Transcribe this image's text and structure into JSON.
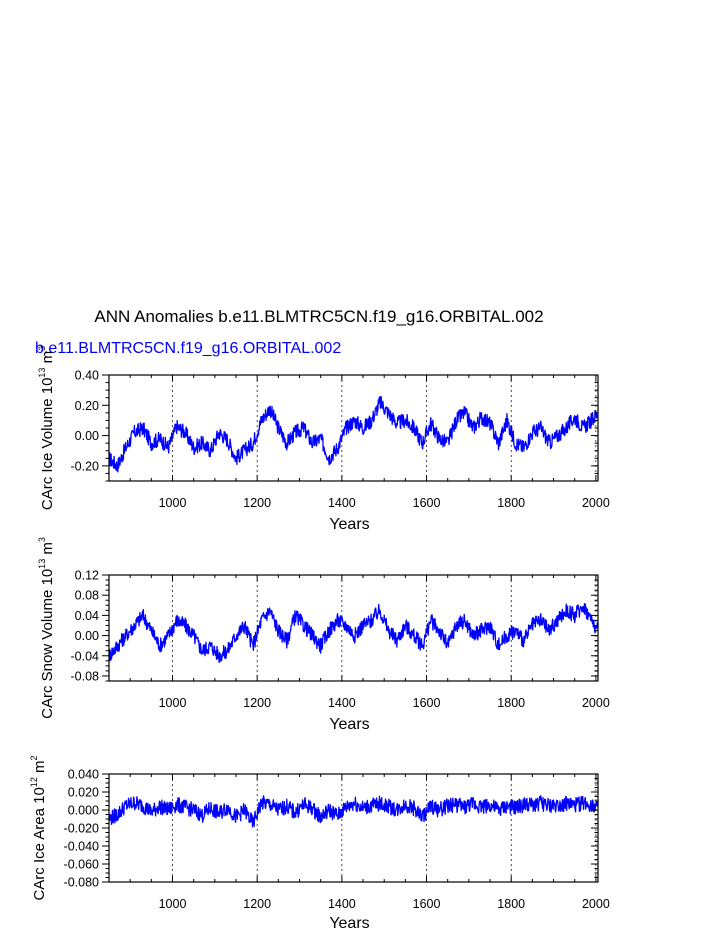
{
  "title": "ANN Anomalies b.e11.BLMTRC5CN.f19_g16.ORBITAL.002",
  "legend_label": "b.e11.BLMTRC5CN.f19_g16.ORBITAL.002",
  "colors": {
    "series": "#0000ff",
    "axes": "#000000",
    "grid": "#000000"
  },
  "chart_data": [
    {
      "type": "line",
      "panel": "ice-volume",
      "ylabel": "CArc Ice Volume 10^13 m^3",
      "ylabel_main": "CArc Ice Volume 10",
      "ylabel_exp": "13",
      "ylabel_unit": " m",
      "ylabel_unit_exp": "3",
      "xlabel": "Years",
      "xlim": [
        850,
        2005
      ],
      "ylim": [
        -0.3,
        0.4
      ],
      "xticks": [
        1000,
        1200,
        1400,
        1600,
        1800,
        2000
      ],
      "xtick_labels": [
        "1000",
        "1200",
        "1400",
        "1600",
        "1800",
        "2000"
      ],
      "yticks": [
        -0.2,
        0.0,
        0.2,
        0.4
      ],
      "ytick_labels": [
        "-0.20",
        "0.00",
        "0.20",
        "0.40"
      ],
      "grid": "x-dashed",
      "series": [
        {
          "name": "b.e11.BLMTRC5CN.f19_g16.ORBITAL.002",
          "x": [
            850,
            870,
            890,
            910,
            930,
            950,
            970,
            990,
            1010,
            1030,
            1050,
            1070,
            1090,
            1110,
            1130,
            1150,
            1170,
            1190,
            1210,
            1230,
            1250,
            1270,
            1290,
            1310,
            1330,
            1350,
            1370,
            1390,
            1410,
            1430,
            1450,
            1470,
            1490,
            1510,
            1530,
            1550,
            1570,
            1590,
            1610,
            1630,
            1650,
            1670,
            1690,
            1710,
            1730,
            1750,
            1770,
            1790,
            1810,
            1830,
            1850,
            1870,
            1890,
            1910,
            1930,
            1950,
            1970,
            1990,
            2005
          ],
          "values": [
            -0.15,
            -0.2,
            -0.08,
            0.02,
            0.05,
            -0.05,
            -0.02,
            -0.08,
            0.06,
            0.02,
            -0.08,
            -0.05,
            -0.1,
            0.02,
            -0.03,
            -0.15,
            -0.1,
            -0.05,
            0.1,
            0.18,
            0.05,
            -0.05,
            0.02,
            0.05,
            -0.05,
            -0.02,
            -0.15,
            -0.08,
            0.05,
            0.1,
            0.05,
            0.1,
            0.22,
            0.15,
            0.08,
            0.1,
            0.05,
            -0.05,
            0.08,
            -0.02,
            -0.05,
            0.1,
            0.15,
            0.05,
            0.12,
            0.08,
            -0.05,
            0.1,
            -0.05,
            -0.08,
            0.02,
            0.05,
            -0.05,
            0.0,
            0.05,
            0.12,
            0.05,
            0.1,
            0.15
          ]
        }
      ]
    },
    {
      "type": "line",
      "panel": "snow-volume",
      "ylabel": "CArc Snow Volume 10^13 m^3",
      "ylabel_main": "CArc Snow Volume 10",
      "ylabel_exp": "13",
      "ylabel_unit": " m",
      "ylabel_unit_exp": "3",
      "xlabel": "Years",
      "xlim": [
        850,
        2005
      ],
      "ylim": [
        -0.09,
        0.12
      ],
      "xticks": [
        1000,
        1200,
        1400,
        1600,
        1800,
        2000
      ],
      "xtick_labels": [
        "1000",
        "1200",
        "1400",
        "1600",
        "1800",
        "2000"
      ],
      "yticks": [
        -0.08,
        -0.04,
        0.0,
        0.04,
        0.08,
        0.12
      ],
      "ytick_labels": [
        "-0.08",
        "-0.04",
        "0.00",
        "0.04",
        "0.08",
        "0.12"
      ],
      "grid": "x-dashed",
      "series": [
        {
          "name": "b.e11.BLMTRC5CN.f19_g16.ORBITAL.002",
          "x": [
            850,
            870,
            890,
            910,
            930,
            950,
            970,
            990,
            1010,
            1030,
            1050,
            1070,
            1090,
            1110,
            1130,
            1150,
            1170,
            1190,
            1210,
            1230,
            1250,
            1270,
            1290,
            1310,
            1330,
            1350,
            1370,
            1390,
            1410,
            1430,
            1450,
            1470,
            1490,
            1510,
            1530,
            1550,
            1570,
            1590,
            1610,
            1630,
            1650,
            1670,
            1690,
            1710,
            1730,
            1750,
            1770,
            1790,
            1810,
            1830,
            1850,
            1870,
            1890,
            1910,
            1930,
            1950,
            1970,
            1990,
            2005
          ],
          "values": [
            -0.04,
            -0.02,
            0.0,
            0.02,
            0.04,
            0.01,
            -0.02,
            0.0,
            0.03,
            0.02,
            0.0,
            -0.03,
            -0.02,
            -0.04,
            -0.03,
            0.0,
            0.02,
            -0.02,
            0.03,
            0.05,
            0.01,
            -0.01,
            0.04,
            0.02,
            0.0,
            -0.02,
            0.01,
            0.03,
            0.02,
            0.0,
            0.02,
            0.03,
            0.05,
            0.01,
            -0.01,
            0.02,
            0.0,
            -0.02,
            0.03,
            0.01,
            -0.02,
            0.02,
            0.03,
            0.0,
            0.01,
            0.02,
            -0.02,
            0.0,
            0.01,
            -0.01,
            0.02,
            0.03,
            0.01,
            0.03,
            0.05,
            0.04,
            0.06,
            0.03,
            0.01
          ]
        }
      ]
    },
    {
      "type": "line",
      "panel": "ice-area",
      "ylabel": "CArc Ice Area 10^12 m^2",
      "ylabel_main": "CArc Ice Area 10",
      "ylabel_exp": "12",
      "ylabel_unit": " m",
      "ylabel_unit_exp": "2",
      "xlabel": "Years",
      "xlim": [
        850,
        2005
      ],
      "ylim": [
        -0.08,
        0.04
      ],
      "xticks": [
        1000,
        1200,
        1400,
        1600,
        1800,
        2000
      ],
      "xtick_labels": [
        "1000",
        "1200",
        "1400",
        "1600",
        "1800",
        "2000"
      ],
      "yticks": [
        -0.08,
        -0.06,
        -0.04,
        -0.02,
        0.0,
        0.02,
        0.04
      ],
      "ytick_labels": [
        "-0.080",
        "-0.060",
        "-0.040",
        "-0.020",
        "0.000",
        "0.020",
        "0.040"
      ],
      "grid": "x-dashed",
      "series": [
        {
          "name": "b.e11.BLMTRC5CN.f19_g16.ORBITAL.002",
          "x": [
            850,
            870,
            890,
            910,
            930,
            950,
            970,
            990,
            1010,
            1030,
            1050,
            1070,
            1090,
            1110,
            1130,
            1150,
            1170,
            1190,
            1210,
            1230,
            1250,
            1270,
            1290,
            1310,
            1330,
            1350,
            1370,
            1390,
            1410,
            1430,
            1450,
            1470,
            1490,
            1510,
            1530,
            1550,
            1570,
            1590,
            1610,
            1630,
            1650,
            1670,
            1690,
            1710,
            1730,
            1750,
            1770,
            1790,
            1810,
            1830,
            1850,
            1870,
            1890,
            1910,
            1930,
            1950,
            1970,
            1990,
            2005
          ],
          "values": [
            -0.01,
            -0.005,
            0.005,
            0.008,
            0.005,
            -0.002,
            0.004,
            0.0,
            0.006,
            0.003,
            0.0,
            -0.006,
            0.002,
            -0.004,
            0.003,
            -0.008,
            0.0,
            -0.015,
            0.008,
            0.006,
            0.0,
            0.004,
            -0.003,
            0.006,
            0.002,
            -0.008,
            0.0,
            -0.006,
            0.003,
            0.008,
            0.002,
            0.005,
            0.007,
            0.004,
            0.0,
            0.006,
            0.002,
            -0.008,
            0.004,
            0.0,
            0.005,
            0.006,
            0.003,
            0.007,
            0.004,
            0.005,
            0.0,
            0.004,
            0.002,
            0.006,
            0.005,
            0.008,
            0.004,
            0.006,
            0.007,
            0.005,
            0.008,
            0.006,
            0.004
          ]
        }
      ]
    }
  ]
}
